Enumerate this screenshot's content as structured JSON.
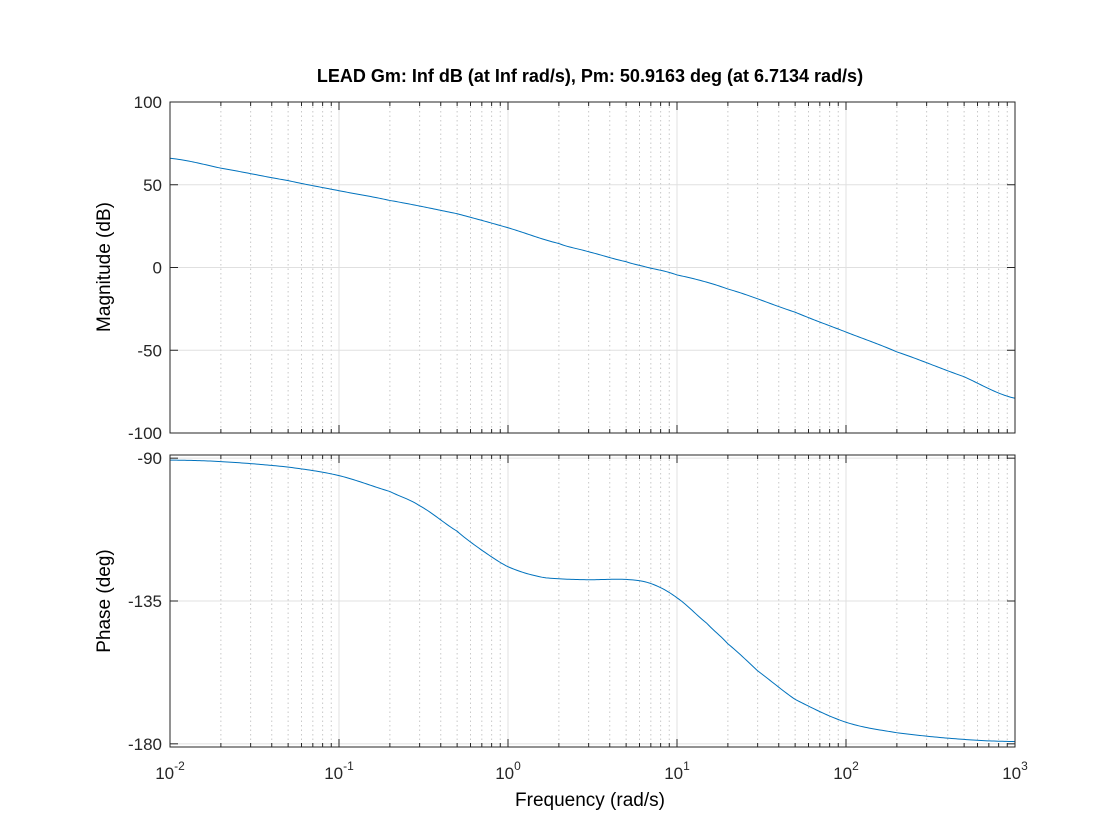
{
  "chart_data": {
    "type": "line",
    "title": "LEAD  Gm: Inf dB (at Inf rad/s), Pm: 50.9163 deg (at 6.7134 rad/s)",
    "xlabel": "Frequency  (rad/s)",
    "x_scale": "log",
    "xlim": [
      0.01,
      1000
    ],
    "x_ticks": [
      {
        "value": 0.01,
        "base": "10",
        "exp": "-2"
      },
      {
        "value": 0.1,
        "base": "10",
        "exp": "-1"
      },
      {
        "value": 1,
        "base": "10",
        "exp": "0"
      },
      {
        "value": 10,
        "base": "10",
        "exp": "1"
      },
      {
        "value": 100,
        "base": "10",
        "exp": "2"
      },
      {
        "value": 1000,
        "base": "10",
        "exp": "3"
      }
    ],
    "grid": true,
    "line_color": "#0072BD",
    "panels": [
      {
        "name": "magnitude",
        "ylabel": "Magnitude (dB)",
        "ylim": [
          -100,
          100
        ],
        "y_ticks": [
          {
            "value": 100,
            "label": "100"
          },
          {
            "value": 50,
            "label": "50"
          },
          {
            "value": 0,
            "label": "0"
          },
          {
            "value": -50,
            "label": "-50"
          },
          {
            "value": -100,
            "label": "-100"
          }
        ],
        "series": [
          {
            "x": [
              0.01,
              0.02,
              0.05,
              0.1,
              0.2,
              0.5,
              1,
              2,
              3,
              5,
              6.7134,
              10,
              20,
              50,
              100,
              200,
              500,
              1000
            ],
            "y": [
              66,
              60,
              52.5,
              46.4,
              40.5,
              32.5,
              24,
              14.5,
              9.5,
              3.5,
              0,
              -4.5,
              -13,
              -27,
              -39,
              -51,
              -66,
              -79
            ]
          }
        ]
      },
      {
        "name": "phase",
        "ylabel": "Phase (deg)",
        "ylim": [
          -181,
          -89
        ],
        "y_ticks": [
          {
            "value": -90,
            "label": "-90"
          },
          {
            "value": -135,
            "label": "-135"
          },
          {
            "value": -180,
            "label": "-180"
          }
        ],
        "series": [
          {
            "x": [
              0.01,
              0.02,
              0.05,
              0.1,
              0.2,
              0.3,
              0.5,
              0.7,
              1,
              1.5,
              2,
              3,
              5,
              7,
              10,
              15,
              20,
              30,
              50,
              100,
              200,
              500,
              1000
            ],
            "y": [
              -90.6,
              -91.1,
              -92.8,
              -95.5,
              -100.5,
              -105,
              -113,
              -119,
              -124.2,
              -127.2,
              -128,
              -128.3,
              -128.2,
              -129.5,
              -134,
              -142,
              -148.5,
              -157,
              -166,
              -173.2,
              -176.5,
              -178.6,
              -179.3
            ]
          }
        ]
      }
    ]
  }
}
